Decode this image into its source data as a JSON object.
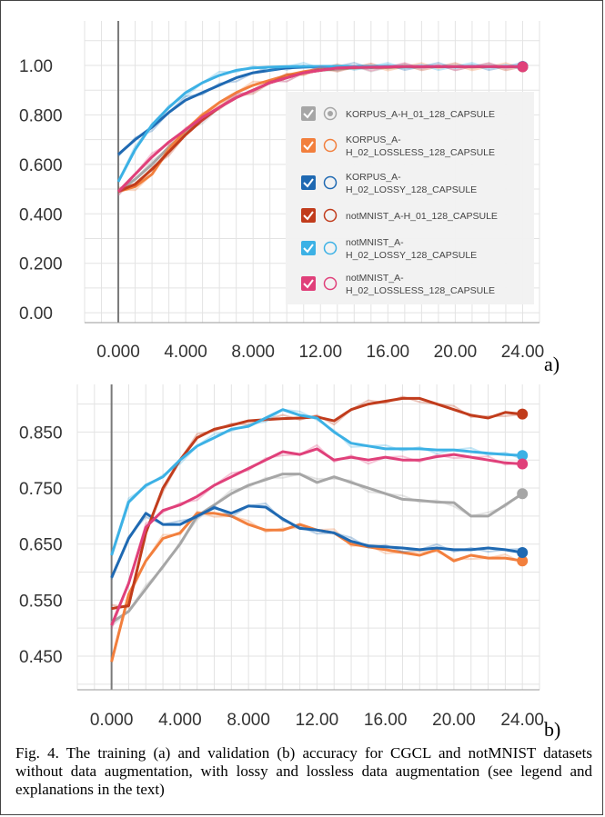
{
  "chart_data": [
    {
      "panel": "a)",
      "type": "line",
      "xlim": [
        -2,
        25
      ],
      "ylim": [
        -0.04,
        1.18
      ],
      "xticks": [
        "0.000",
        "4.000",
        "8.000",
        "12.00",
        "16.00",
        "20.00",
        "24.00"
      ],
      "xtick_values": [
        0,
        4,
        8,
        12,
        16,
        20,
        24
      ],
      "yticks": [
        "1.00",
        "0.800",
        "0.600",
        "0.400",
        "0.200",
        "0.00"
      ],
      "ytick_values": [
        1.0,
        0.8,
        0.6,
        0.4,
        0.2,
        0.0
      ],
      "grid": true,
      "legend_position": "right",
      "series": [
        {
          "name": "KORPUS_A-H_01_128_CAPSULE",
          "color": "#a6a6a6",
          "x": [
            0,
            1,
            2,
            3,
            4,
            5,
            6,
            7,
            8,
            9,
            10,
            11,
            12,
            13,
            14,
            15,
            16,
            17,
            18,
            19,
            20,
            21,
            22,
            23,
            24
          ],
          "values": [
            0.49,
            0.54,
            0.6,
            0.67,
            0.73,
            0.78,
            0.83,
            0.87,
            0.9,
            0.93,
            0.95,
            0.97,
            0.98,
            0.985,
            0.99,
            0.99,
            0.992,
            0.993,
            0.994,
            0.995,
            0.995,
            0.995,
            0.995,
            0.995,
            0.995
          ]
        },
        {
          "name": "KORPUS_A-H_02_LOSSLESS_128_CAPSULE",
          "color": "#f27f3d",
          "x": [
            0,
            1,
            2,
            3,
            4,
            5,
            6,
            7,
            8,
            9,
            10,
            11,
            12,
            13,
            14,
            15,
            16,
            17,
            18,
            19,
            20,
            21,
            22,
            23,
            24
          ],
          "values": [
            0.49,
            0.51,
            0.56,
            0.66,
            0.74,
            0.8,
            0.85,
            0.89,
            0.92,
            0.94,
            0.96,
            0.975,
            0.985,
            0.99,
            0.992,
            0.993,
            0.994,
            0.995,
            0.995,
            0.995,
            0.995,
            0.995,
            0.995,
            0.995,
            0.995
          ]
        },
        {
          "name": "KORPUS_A-H_02_LOSSY_128_CAPSULE",
          "color": "#1f69b2",
          "x": [
            0,
            1,
            2,
            3,
            4,
            5,
            6,
            7,
            8,
            9,
            10,
            11,
            12,
            13,
            14,
            15,
            16,
            17,
            18,
            19,
            20,
            21,
            22,
            23,
            24
          ],
          "values": [
            0.64,
            0.7,
            0.75,
            0.81,
            0.86,
            0.89,
            0.92,
            0.95,
            0.97,
            0.98,
            0.99,
            0.993,
            0.995,
            0.996,
            0.996,
            0.996,
            0.996,
            0.996,
            0.996,
            0.996,
            0.996,
            0.996,
            0.996,
            0.996,
            0.996
          ]
        },
        {
          "name": "notMNIST_A-H_01_128_CAPSULE",
          "color": "#c13c1c",
          "x": [
            0,
            1,
            2,
            3,
            4,
            5,
            6,
            7,
            8,
            9,
            10,
            11,
            12,
            13,
            14,
            15,
            16,
            17,
            18,
            19,
            20,
            21,
            22,
            23,
            24
          ],
          "values": [
            0.49,
            0.52,
            0.58,
            0.65,
            0.72,
            0.78,
            0.83,
            0.87,
            0.9,
            0.93,
            0.95,
            0.97,
            0.98,
            0.99,
            0.992,
            0.993,
            0.994,
            0.995,
            0.995,
            0.995,
            0.995,
            0.995,
            0.995,
            0.995,
            0.995
          ]
        },
        {
          "name": "notMNIST_A-H_02_LOSSY_128_CAPSULE",
          "color": "#3cb1e5",
          "x": [
            0,
            1,
            2,
            3,
            4,
            5,
            6,
            7,
            8,
            9,
            10,
            11,
            12,
            13,
            14,
            15,
            16,
            17,
            18,
            19,
            20,
            21,
            22,
            23,
            24
          ],
          "values": [
            0.53,
            0.66,
            0.76,
            0.83,
            0.89,
            0.93,
            0.96,
            0.98,
            0.99,
            0.993,
            0.995,
            0.996,
            0.996,
            0.996,
            0.996,
            0.996,
            0.996,
            0.996,
            0.996,
            0.996,
            0.996,
            0.996,
            0.996,
            0.996,
            0.996
          ]
        },
        {
          "name": "notMNIST_A-H_02_LOSSLESS_128_CAPSULE",
          "color": "#e0407a",
          "x": [
            0,
            1,
            2,
            3,
            4,
            5,
            6,
            7,
            8,
            9,
            10,
            11,
            12,
            13,
            14,
            15,
            16,
            17,
            18,
            19,
            20,
            21,
            22,
            23,
            24
          ],
          "values": [
            0.49,
            0.56,
            0.63,
            0.69,
            0.74,
            0.79,
            0.83,
            0.87,
            0.9,
            0.93,
            0.95,
            0.97,
            0.98,
            0.99,
            0.992,
            0.993,
            0.994,
            0.995,
            0.995,
            0.995,
            0.995,
            0.995,
            0.995,
            0.995,
            0.995
          ]
        }
      ]
    },
    {
      "panel": "b)",
      "type": "line",
      "xlim": [
        -2,
        25
      ],
      "ylim": [
        0.39,
        0.935
      ],
      "xticks": [
        "0.000",
        "4.000",
        "8.000",
        "12.00",
        "16.00",
        "20.00",
        "24.00"
      ],
      "xtick_values": [
        0,
        4,
        8,
        12,
        16,
        20,
        24
      ],
      "yticks": [
        "0.850",
        "0.750",
        "0.650",
        "0.550",
        "0.450"
      ],
      "ytick_values": [
        0.85,
        0.75,
        0.65,
        0.55,
        0.45
      ],
      "grid": true,
      "series": [
        {
          "color": "#a6a6a6",
          "x": [
            0,
            1,
            2,
            3,
            4,
            5,
            6,
            7,
            8,
            9,
            10,
            11,
            12,
            13,
            14,
            15,
            16,
            17,
            18,
            19,
            20,
            21,
            22,
            23,
            24
          ],
          "values": [
            0.51,
            0.53,
            0.57,
            0.61,
            0.65,
            0.7,
            0.72,
            0.74,
            0.755,
            0.765,
            0.775,
            0.775,
            0.76,
            0.77,
            0.76,
            0.75,
            0.74,
            0.73,
            0.728,
            0.725,
            0.724,
            0.7,
            0.7,
            0.72,
            0.74
          ]
        },
        {
          "color": "#f27f3d",
          "x": [
            0,
            1,
            2,
            3,
            4,
            5,
            6,
            7,
            8,
            9,
            10,
            11,
            12,
            13,
            14,
            15,
            16,
            17,
            18,
            19,
            20,
            21,
            22,
            23,
            24
          ],
          "values": [
            0.44,
            0.56,
            0.62,
            0.66,
            0.67,
            0.705,
            0.705,
            0.7,
            0.685,
            0.675,
            0.675,
            0.685,
            0.675,
            0.67,
            0.65,
            0.645,
            0.64,
            0.635,
            0.63,
            0.64,
            0.62,
            0.63,
            0.625,
            0.625,
            0.62
          ]
        },
        {
          "color": "#1f69b2",
          "x": [
            0,
            1,
            2,
            3,
            4,
            5,
            6,
            7,
            8,
            9,
            10,
            11,
            12,
            13,
            14,
            15,
            16,
            17,
            18,
            19,
            20,
            21,
            22,
            23,
            24
          ],
          "values": [
            0.59,
            0.66,
            0.705,
            0.685,
            0.685,
            0.7,
            0.715,
            0.705,
            0.718,
            0.716,
            0.695,
            0.678,
            0.675,
            0.67,
            0.655,
            0.647,
            0.645,
            0.643,
            0.64,
            0.643,
            0.64,
            0.64,
            0.643,
            0.64,
            0.635
          ]
        },
        {
          "color": "#c13c1c",
          "x": [
            0,
            1,
            2,
            3,
            4,
            5,
            6,
            7,
            8,
            9,
            10,
            11,
            12,
            13,
            14,
            15,
            16,
            17,
            18,
            19,
            20,
            21,
            22,
            23,
            24
          ],
          "values": [
            0.535,
            0.54,
            0.67,
            0.75,
            0.8,
            0.84,
            0.855,
            0.862,
            0.87,
            0.872,
            0.874,
            0.875,
            0.877,
            0.87,
            0.89,
            0.9,
            0.905,
            0.91,
            0.91,
            0.9,
            0.89,
            0.88,
            0.875,
            0.885,
            0.882
          ]
        },
        {
          "color": "#3cb1e5",
          "x": [
            0,
            1,
            2,
            3,
            4,
            5,
            6,
            7,
            8,
            9,
            10,
            11,
            12,
            13,
            14,
            15,
            16,
            17,
            18,
            19,
            20,
            21,
            22,
            23,
            24
          ],
          "values": [
            0.63,
            0.725,
            0.755,
            0.77,
            0.8,
            0.825,
            0.84,
            0.855,
            0.86,
            0.875,
            0.89,
            0.88,
            0.875,
            0.85,
            0.83,
            0.825,
            0.82,
            0.82,
            0.82,
            0.818,
            0.818,
            0.815,
            0.812,
            0.81,
            0.808
          ]
        },
        {
          "color": "#e0407a",
          "x": [
            0,
            1,
            2,
            3,
            4,
            5,
            6,
            7,
            8,
            9,
            10,
            11,
            12,
            13,
            14,
            15,
            16,
            17,
            18,
            19,
            20,
            21,
            22,
            23,
            24
          ],
          "values": [
            0.505,
            0.58,
            0.68,
            0.71,
            0.72,
            0.735,
            0.755,
            0.77,
            0.785,
            0.8,
            0.815,
            0.81,
            0.82,
            0.8,
            0.805,
            0.8,
            0.805,
            0.8,
            0.8,
            0.806,
            0.81,
            0.805,
            0.8,
            0.795,
            0.793
          ]
        }
      ]
    }
  ],
  "caption": "Fig. 4.  The training (a) and validation (b) accuracy for CGCL and notMNIST datasets without data augmentation, with lossy and lossless data augmentation (see legend and explanations in the text)",
  "legend": {
    "items": [
      {
        "line1": "KORPUS_A-H_01_128_CAPSULE",
        "line2": "",
        "color": "#a6a6a6"
      },
      {
        "line1": "KORPUS_A-",
        "line2": "H_02_LOSSLESS_128_CAPSULE",
        "color": "#f27f3d"
      },
      {
        "line1": "KORPUS_A-",
        "line2": "H_02_LOSSY_128_CAPSULE",
        "color": "#1f69b2"
      },
      {
        "line1": "notMNIST_A-H_01_128_CAPSULE",
        "line2": "",
        "color": "#c13c1c"
      },
      {
        "line1": "notMNIST_A-",
        "line2": "H_02_LOSSY_128_CAPSULE",
        "color": "#3cb1e5"
      },
      {
        "line1": "notMNIST_A-",
        "line2": "H_02_LOSSLESS_128_CAPSULE",
        "color": "#e0407a"
      }
    ]
  }
}
